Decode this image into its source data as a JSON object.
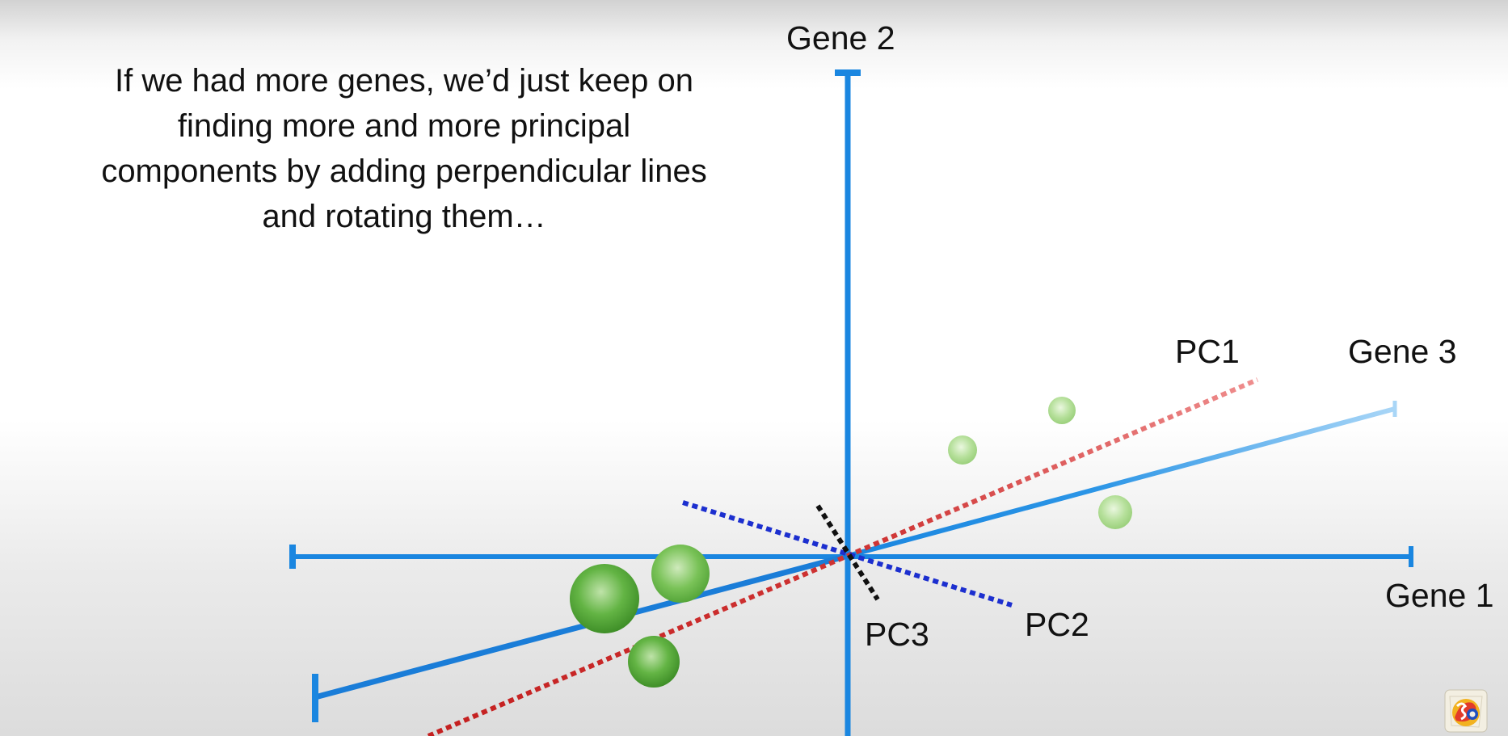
{
  "caption": {
    "lines": [
      "If we had more genes, we’d just keep on",
      "finding more and more principal",
      "components by adding perpendicular lines",
      "and rotating them…"
    ]
  },
  "labels": {
    "gene1": "Gene 1",
    "gene2": "Gene 2",
    "gene3": "Gene 3",
    "pc1": "PC1",
    "pc2": "PC2",
    "pc3": "PC3"
  },
  "colors": {
    "axis_blue": "#1a86e0",
    "pc1_red": "#cc2d2d",
    "pc2_blue": "#1c2fcf",
    "pc3_black": "#111111",
    "point_green": "#5fb340"
  },
  "icons": {
    "logo": "statquest-logo-icon"
  }
}
